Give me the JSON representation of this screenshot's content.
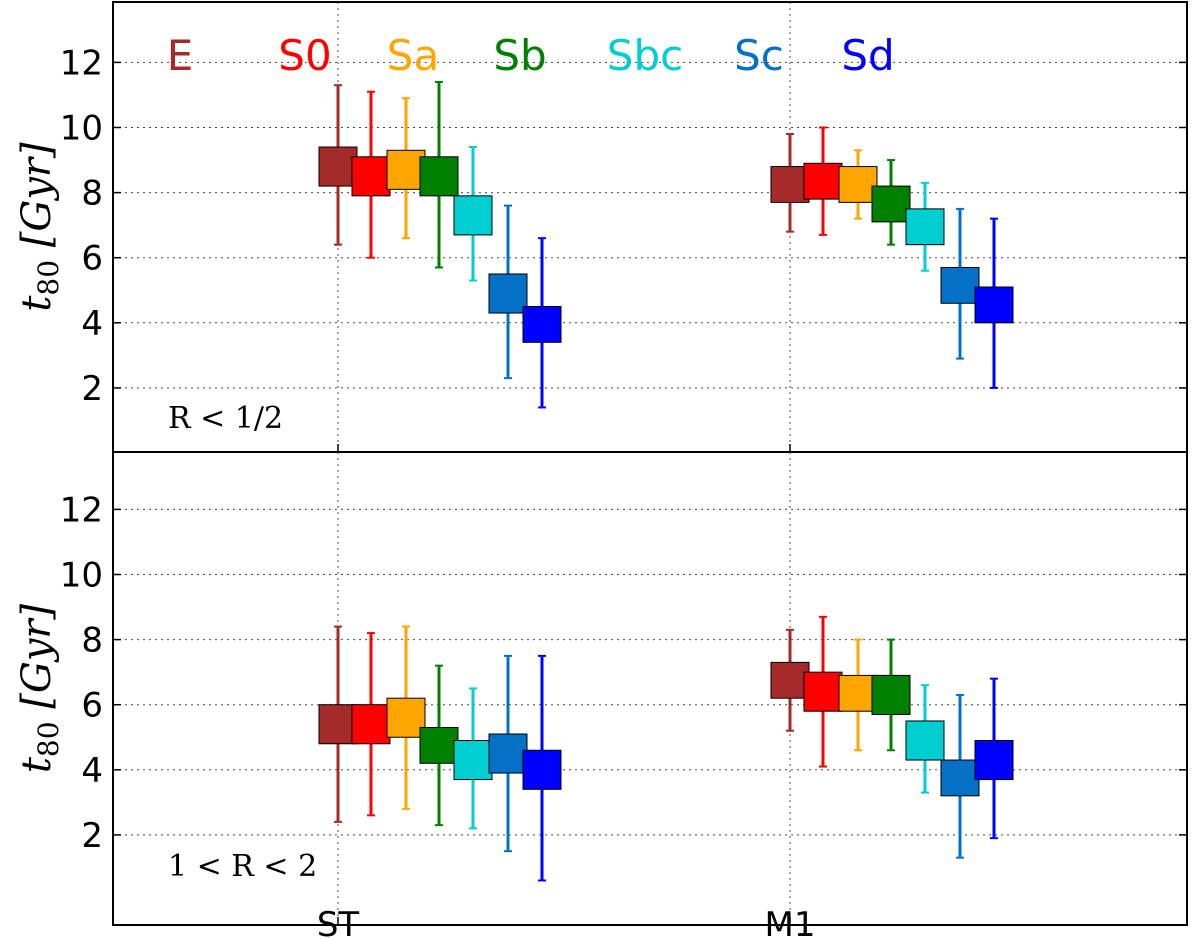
{
  "chart_data": {
    "type": "boxplot",
    "categories": [
      "ST",
      "M1"
    ],
    "series_names": [
      "E",
      "S0",
      "Sa",
      "Sb",
      "Sbc",
      "Sc",
      "Sd"
    ],
    "colors": [
      "#a52a2a",
      "#ff0000",
      "#ffa500",
      "#008000",
      "#00ced1",
      "#0571c6",
      "#0000ff"
    ],
    "ylabel_main": "t",
    "ylabel_sub": "80",
    "ylabel_unit": "[Gyr]",
    "ylim": [
      0,
      14
    ],
    "yticks": [
      2,
      4,
      6,
      8,
      10,
      12
    ],
    "grid": true,
    "legend_position": "top-left",
    "panels": [
      {
        "region_label": "R < 1/2",
        "series": [
          {
            "name": "E",
            "ST": {
              "low": 6.4,
              "q1": 8.2,
              "q3": 9.4,
              "high": 11.3
            },
            "M1": {
              "low": 6.8,
              "q1": 7.7,
              "q3": 8.8,
              "high": 9.8
            }
          },
          {
            "name": "S0",
            "ST": {
              "low": 6.0,
              "q1": 7.9,
              "q3": 9.1,
              "high": 11.1
            },
            "M1": {
              "low": 6.7,
              "q1": 7.8,
              "q3": 8.9,
              "high": 10.0
            }
          },
          {
            "name": "Sa",
            "ST": {
              "low": 6.6,
              "q1": 8.1,
              "q3": 9.3,
              "high": 10.9
            },
            "M1": {
              "low": 7.2,
              "q1": 7.7,
              "q3": 8.8,
              "high": 9.3
            }
          },
          {
            "name": "Sb",
            "ST": {
              "low": 5.7,
              "q1": 7.9,
              "q3": 9.1,
              "high": 11.4
            },
            "M1": {
              "low": 6.4,
              "q1": 7.1,
              "q3": 8.2,
              "high": 9.0
            }
          },
          {
            "name": "Sbc",
            "ST": {
              "low": 5.3,
              "q1": 6.7,
              "q3": 7.9,
              "high": 9.4
            },
            "M1": {
              "low": 5.6,
              "q1": 6.4,
              "q3": 7.5,
              "high": 8.3
            }
          },
          {
            "name": "Sc",
            "ST": {
              "low": 2.3,
              "q1": 4.3,
              "q3": 5.5,
              "high": 7.6
            },
            "M1": {
              "low": 2.9,
              "q1": 4.6,
              "q3": 5.7,
              "high": 7.5
            }
          },
          {
            "name": "Sd",
            "ST": {
              "low": 1.4,
              "q1": 3.4,
              "q3": 4.5,
              "high": 6.6
            },
            "M1": {
              "low": 2.0,
              "q1": 4.0,
              "q3": 5.1,
              "high": 7.2
            }
          }
        ]
      },
      {
        "region_label": "1 < R < 2",
        "series": [
          {
            "name": "E",
            "ST": {
              "low": 2.4,
              "q1": 4.8,
              "q3": 6.0,
              "high": 8.4
            },
            "M1": {
              "low": 5.2,
              "q1": 6.2,
              "q3": 7.3,
              "high": 8.3
            }
          },
          {
            "name": "S0",
            "ST": {
              "low": 2.6,
              "q1": 4.8,
              "q3": 6.0,
              "high": 8.2
            },
            "M1": {
              "low": 4.1,
              "q1": 5.8,
              "q3": 7.0,
              "high": 8.7
            }
          },
          {
            "name": "Sa",
            "ST": {
              "low": 2.8,
              "q1": 5.0,
              "q3": 6.2,
              "high": 8.4
            },
            "M1": {
              "low": 4.6,
              "q1": 5.8,
              "q3": 6.9,
              "high": 8.0
            }
          },
          {
            "name": "Sb",
            "ST": {
              "low": 2.3,
              "q1": 4.2,
              "q3": 5.3,
              "high": 7.2
            },
            "M1": {
              "low": 4.6,
              "q1": 5.7,
              "q3": 6.9,
              "high": 8.0
            }
          },
          {
            "name": "Sbc",
            "ST": {
              "low": 2.2,
              "q1": 3.7,
              "q3": 4.9,
              "high": 6.5
            },
            "M1": {
              "low": 3.3,
              "q1": 4.3,
              "q3": 5.5,
              "high": 6.6
            }
          },
          {
            "name": "Sc",
            "ST": {
              "low": 1.5,
              "q1": 3.9,
              "q3": 5.1,
              "high": 7.5
            },
            "M1": {
              "low": 1.3,
              "q1": 3.2,
              "q3": 4.3,
              "high": 6.3
            }
          },
          {
            "name": "Sd",
            "ST": {
              "low": 0.6,
              "q1": 3.4,
              "q3": 4.6,
              "high": 7.5
            },
            "M1": {
              "low": 1.9,
              "q1": 3.7,
              "q3": 4.9,
              "high": 6.8
            }
          }
        ]
      }
    ]
  }
}
